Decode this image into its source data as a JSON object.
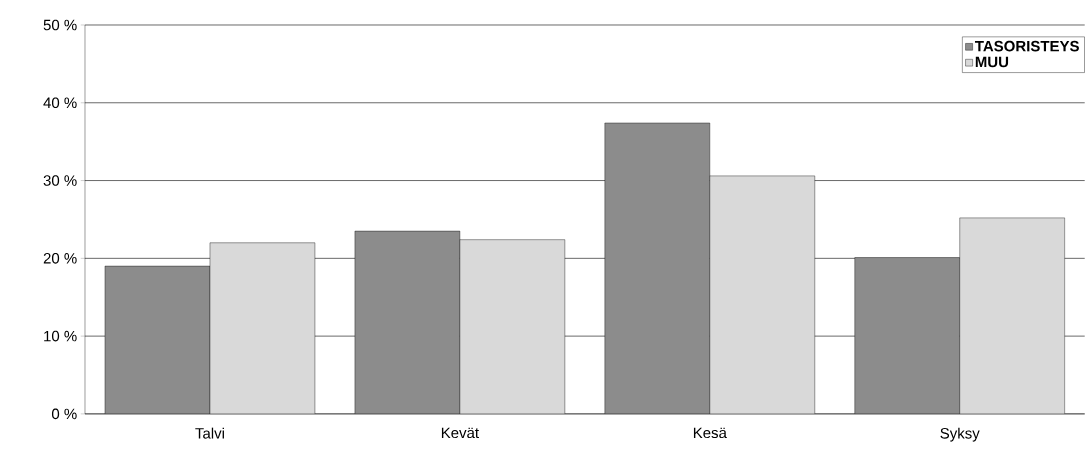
{
  "chart_data": {
    "type": "bar",
    "categories": [
      "Talvi",
      "Kevät",
      "Kesä",
      "Syksy"
    ],
    "series": [
      {
        "name": "TASORISTEYS",
        "color": "#8c8c8c",
        "values": [
          19.0,
          23.5,
          37.4,
          20.1
        ]
      },
      {
        "name": "MUU",
        "color": "#d9d9d9",
        "values": [
          22.0,
          22.4,
          30.6,
          25.2
        ]
      }
    ],
    "ylim": [
      0,
      50
    ],
    "yticks": [
      {
        "value": 0,
        "label": "0 %"
      },
      {
        "value": 10,
        "label": "10 %"
      },
      {
        "value": 20,
        "label": "20 %"
      },
      {
        "value": 30,
        "label": "30 %"
      },
      {
        "value": 40,
        "label": "40 %"
      },
      {
        "value": 50,
        "label": "50 %"
      }
    ],
    "grid": "y",
    "legend": "top right"
  }
}
